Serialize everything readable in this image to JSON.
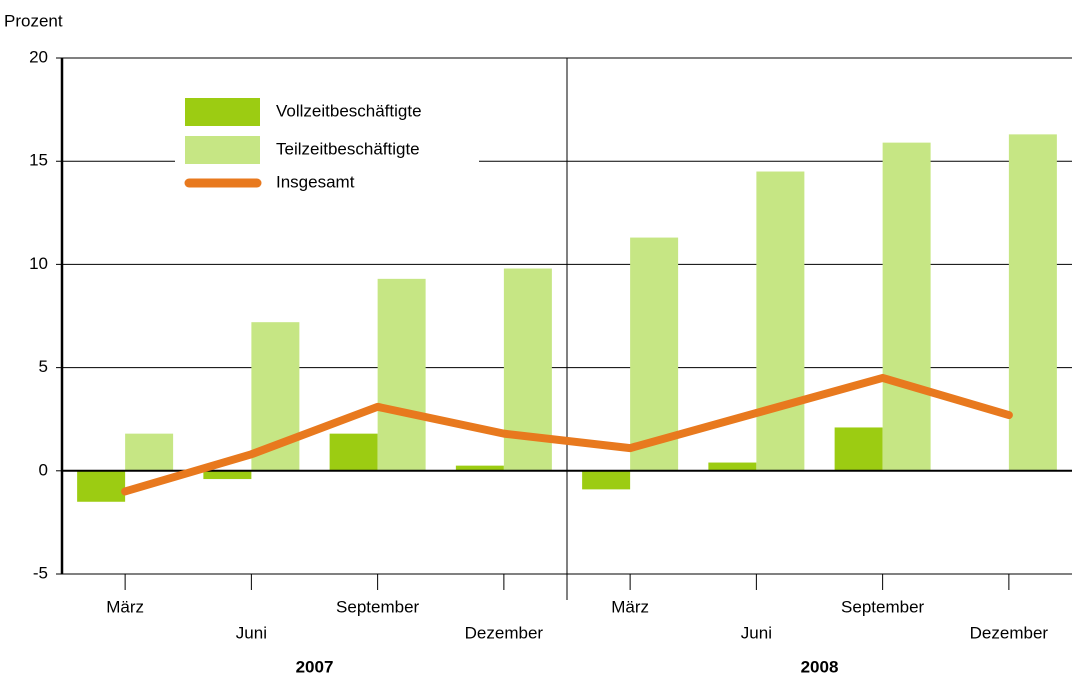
{
  "chart_data": {
    "type": "bar-line",
    "y_label": "Prozent",
    "categories": [
      "März",
      "Juni",
      "September",
      "Dezember",
      "März",
      "Juni",
      "September",
      "Dezember"
    ],
    "groups": [
      "2007",
      "2008"
    ],
    "series": [
      {
        "name": "Vollzeitbeschäftigte",
        "type": "bar",
        "color": "#9ccc12",
        "values": [
          -1.5,
          -0.4,
          1.8,
          0.25,
          -0.9,
          0.4,
          2.1,
          0
        ]
      },
      {
        "name": "Teilzeitbeschäftigte",
        "type": "bar",
        "color": "#c6e684",
        "values": [
          1.8,
          7.2,
          9.3,
          9.8,
          11.3,
          14.5,
          15.9,
          16.3
        ]
      },
      {
        "name": "Insgesamt",
        "type": "line",
        "color": "#e8791e",
        "values": [
          -1.0,
          0.8,
          3.1,
          1.8,
          1.1,
          2.8,
          4.5,
          2.7
        ]
      }
    ],
    "ylim": [
      -5,
      20
    ],
    "yticks": [
      -5,
      0,
      5,
      10,
      15,
      20
    ],
    "grid": true
  }
}
